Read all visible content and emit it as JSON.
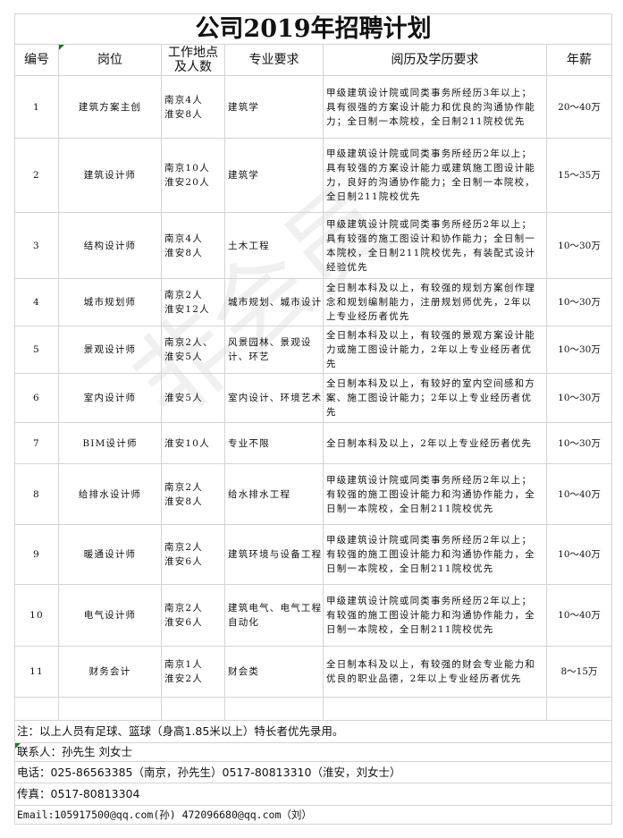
{
  "title": "公司2019年招聘计划",
  "headers": [
    "编号",
    "岗位",
    "工作地点及人数",
    "专业要求",
    "阅历及学历要求",
    "年薪"
  ],
  "rows": [
    {
      "no": "1",
      "post": "建筑方案主创",
      "loc": "南京4人\n淮安8人",
      "major": "建筑学",
      "req": "甲级建筑设计院或同类事务所经历3年以上；具有很强的方案设计能力和优良的沟通协作能力；全日制一本院校，全日制211院校优先",
      "salary": "20～40万"
    },
    {
      "no": "2",
      "post": "建筑设计师",
      "loc": "南京10人\n淮安20人",
      "major": "建筑学",
      "req": "甲级建筑设计院或同类事务所经历2年以上；具有较强的方案设计能力或建筑施工图设计能力，良好的沟通协作能力；全日制一本院校，全日制211院校优先",
      "salary": "15～35万"
    },
    {
      "no": "3",
      "post": "结构设计师",
      "loc": "南京4人\n淮安8人",
      "major": "土木工程",
      "req": "甲级建筑设计院或同类事务所经历2年以上；具有较强的施工图设计和协作能力；全日制一本院校，全日制211院校优先，有装配式设计经验优先",
      "salary": "10～30万"
    },
    {
      "no": "4",
      "post": "城市规划师",
      "loc": "南京2人\n淮安12人",
      "major": "城市规划、城市设计",
      "req": "全日制本科及以上，有较强的规划方案创作理念和规划编制能力，注册规划师优先，2年以上专业经历者优先",
      "salary": "10～30万"
    },
    {
      "no": "5",
      "post": "景观设计师",
      "loc": "南京2人、\n淮安5人",
      "major": "风景园林、景观设计、环艺",
      "req": "全日制本科及以上，有较强的景观方案设计能力或施工图设计能力，2年以上专业经历者优先",
      "salary": "10～30万"
    },
    {
      "no": "6",
      "post": "室内设计师",
      "loc": "淮安5人",
      "major": "室内设计、环境艺术",
      "req": "全日制本科及以上，有较好的室内空间感和方案、施工图设计能力；2年以上专业经历者优先",
      "salary": "10～30万"
    },
    {
      "no": "7",
      "post": "BIM设计师",
      "loc": "淮安10人",
      "major": "专业不限",
      "req": "全日制本科及以上，2年以上专业经历者优先",
      "salary": "10～30万"
    },
    {
      "no": "8",
      "post": "给排水设计师",
      "loc": "南京2人\n淮安8人",
      "major": "给水排水工程",
      "req": "甲级建筑设计院或同类事务所经历2年以上；有较强的施工图设计能力和沟通协作能力，全日制一本院校，全日制211院校优先",
      "salary": "10～40万"
    },
    {
      "no": "9",
      "post": "暖通设计师",
      "loc": "南京2人\n淮安6人",
      "major": "建筑环境与设备工程",
      "req": "甲级建筑设计院或同类事务所经历2年以上；有较强的施工图设计能力和沟通协作能力，全日制一本院校，全日制211院校优先",
      "salary": "10～40万"
    },
    {
      "no": "10",
      "post": "电气设计师",
      "loc": "南京2人\n淮安6人",
      "major": "建筑电气、电气工程自动化",
      "req": "甲级建筑设计院或同类事务所经历2年以上；有较强的施工图设计能力和沟通协作能力，全日制一本院校，全日制211院校优先",
      "salary": "10～40万"
    },
    {
      "no": "11",
      "post": "财务会计",
      "loc": "南京1人\n淮安2人",
      "major": "财会类",
      "req": "全日制本科及以上，有较强的财会专业能力和优良的职业品德，2年以上专业经历者优先",
      "salary": "8～15万"
    }
  ],
  "footer": {
    "note": "注：以上人员有足球、篮球（身高1.85米以上）特长者优先录用。",
    "contact": "联系人：孙先生 刘女士",
    "phone": "电话：025-86563385（南京，孙先生）0517-80813310（淮安，刘女士）",
    "fax": "传真：0517-80813304",
    "email": "Email:105917500@qq.com(孙) 472096680@qq.com（刘）"
  },
  "watermark": "非会员",
  "colors": {
    "grid": "#d4d4d4",
    "comment_marker": "#1a7a1a"
  }
}
